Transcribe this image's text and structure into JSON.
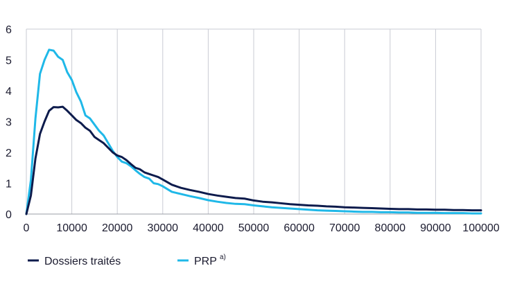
{
  "chart_data": {
    "type": "line",
    "title": "",
    "xlabel": "",
    "ylabel": "",
    "xlim": [
      0,
      100000
    ],
    "ylim": [
      0,
      6
    ],
    "grid": "vertical",
    "x_ticks": [
      "0",
      "10000",
      "20000",
      "30000",
      "40000",
      "50000",
      "60000",
      "70000",
      "80000",
      "90000",
      "100000"
    ],
    "y_ticks": [
      "0",
      "1",
      "2",
      "3",
      "4",
      "5",
      "6"
    ],
    "legend_position": "bottom",
    "series": [
      {
        "name": "Dossiers traités",
        "color": "#0d1b4c",
        "x": [
          0,
          1000,
          2000,
          3000,
          4000,
          5000,
          6000,
          7000,
          8000,
          9000,
          10000,
          11000,
          12000,
          13000,
          14000,
          15000,
          16000,
          17000,
          18000,
          19000,
          20000,
          21000,
          22000,
          23000,
          24000,
          25000,
          26000,
          27000,
          28000,
          29000,
          30000,
          32000,
          34000,
          36000,
          38000,
          40000,
          42000,
          44000,
          46000,
          48000,
          50000,
          52000,
          54000,
          56000,
          58000,
          60000,
          62000,
          64000,
          66000,
          68000,
          70000,
          72000,
          74000,
          76000,
          78000,
          80000,
          82000,
          84000,
          86000,
          88000,
          90000,
          92000,
          94000,
          96000,
          98000,
          100000
        ],
        "values": [
          0,
          0.6,
          1.8,
          2.6,
          3.0,
          3.35,
          3.47,
          3.46,
          3.48,
          3.35,
          3.2,
          3.05,
          2.95,
          2.8,
          2.7,
          2.5,
          2.4,
          2.3,
          2.15,
          2.0,
          1.9,
          1.85,
          1.75,
          1.62,
          1.5,
          1.45,
          1.35,
          1.3,
          1.25,
          1.2,
          1.12,
          0.95,
          0.85,
          0.78,
          0.72,
          0.65,
          0.6,
          0.56,
          0.52,
          0.5,
          0.44,
          0.4,
          0.38,
          0.35,
          0.32,
          0.3,
          0.28,
          0.27,
          0.25,
          0.24,
          0.22,
          0.21,
          0.2,
          0.19,
          0.18,
          0.17,
          0.16,
          0.16,
          0.15,
          0.15,
          0.14,
          0.14,
          0.13,
          0.13,
          0.12,
          0.12
        ]
      },
      {
        "name": "PRP",
        "superscript": "a)",
        "color": "#1fb8e8",
        "x": [
          0,
          1000,
          2000,
          3000,
          4000,
          5000,
          6000,
          7000,
          8000,
          9000,
          10000,
          11000,
          12000,
          13000,
          14000,
          15000,
          16000,
          17000,
          18000,
          19000,
          20000,
          21000,
          22000,
          23000,
          24000,
          25000,
          26000,
          27000,
          28000,
          29000,
          30000,
          32000,
          34000,
          36000,
          38000,
          40000,
          42000,
          44000,
          46000,
          48000,
          50000,
          52000,
          54000,
          56000,
          58000,
          60000,
          62000,
          64000,
          66000,
          68000,
          70000,
          72000,
          74000,
          76000,
          78000,
          80000,
          82000,
          84000,
          86000,
          88000,
          90000,
          92000,
          94000,
          96000,
          98000,
          100000
        ],
        "values": [
          0,
          1.1,
          3.1,
          4.55,
          5.0,
          5.33,
          5.3,
          5.1,
          5.0,
          4.6,
          4.35,
          3.95,
          3.65,
          3.2,
          3.1,
          2.9,
          2.7,
          2.55,
          2.3,
          2.05,
          1.85,
          1.7,
          1.65,
          1.55,
          1.42,
          1.3,
          1.2,
          1.15,
          1.0,
          0.97,
          0.9,
          0.72,
          0.65,
          0.58,
          0.52,
          0.45,
          0.4,
          0.36,
          0.33,
          0.32,
          0.28,
          0.25,
          0.22,
          0.2,
          0.18,
          0.16,
          0.14,
          0.12,
          0.11,
          0.1,
          0.09,
          0.08,
          0.07,
          0.07,
          0.06,
          0.06,
          0.05,
          0.05,
          0.04,
          0.04,
          0.04,
          0.03,
          0.03,
          0.03,
          0.02,
          0.02
        ]
      }
    ]
  }
}
